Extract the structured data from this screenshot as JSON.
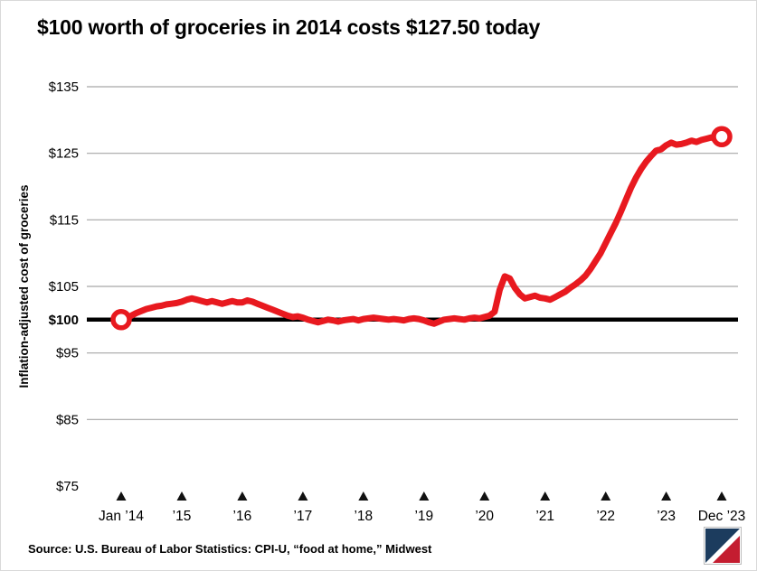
{
  "header": {
    "title": "$100 worth of groceries in 2014 costs $127.50 today"
  },
  "source": {
    "text": "Source: U.S. Bureau of Labor Statistics: CPI-U, “food at home,” Midwest"
  },
  "style": {
    "line_color": "#e8191f",
    "grid_color": "#a6a6a6",
    "baseline_color": "#000000",
    "tick_marker_color": "#111111",
    "logo_navy": "#1c3c5e",
    "logo_red": "#c41d30"
  },
  "chart_data": {
    "type": "line",
    "title": "$100 worth of groceries in 2014 costs $127.50 today",
    "xlabel": "",
    "ylabel": "Inflation-adjusted cost of groceries",
    "ylim": [
      75,
      135
    ],
    "grid": "horizontal-only",
    "legend": "none",
    "gridline_values": [
      135,
      125,
      115,
      105,
      95,
      85
    ],
    "baseline": {
      "value": 100,
      "label": "$100"
    },
    "y_ticks": [
      {
        "label": "$135",
        "value": 135
      },
      {
        "label": "$125",
        "value": 125
      },
      {
        "label": "$115",
        "value": 115
      },
      {
        "label": "$105",
        "value": 105
      },
      {
        "label": "$100",
        "value": 100
      },
      {
        "label": "$95",
        "value": 95
      },
      {
        "label": "$85",
        "value": 85
      },
      {
        "label": "$75",
        "value": 75
      }
    ],
    "x_ticks": [
      {
        "label": "Jan ’14",
        "month_index": 0
      },
      {
        "label": "’15",
        "month_index": 12
      },
      {
        "label": "’16",
        "month_index": 24
      },
      {
        "label": "’17",
        "month_index": 36
      },
      {
        "label": "’18",
        "month_index": 48
      },
      {
        "label": "’19",
        "month_index": 60
      },
      {
        "label": "’20",
        "month_index": 72
      },
      {
        "label": "’21",
        "month_index": 84
      },
      {
        "label": "’22",
        "month_index": 96
      },
      {
        "label": "’23",
        "month_index": 108
      },
      {
        "label": "Dec ’23",
        "month_index": 119
      }
    ],
    "series": [
      {
        "name": "Inflation-adjusted cost of groceries",
        "color": "#e8191f",
        "start_month": "Jan 2014",
        "end_month": "Dec 2023",
        "start_value": 100,
        "end_value": 127.5,
        "values": [
          100.0,
          100.3,
          100.6,
          101.0,
          101.3,
          101.6,
          101.8,
          102.0,
          102.1,
          102.3,
          102.4,
          102.5,
          102.7,
          103.0,
          103.2,
          103.0,
          102.8,
          102.6,
          102.8,
          102.6,
          102.4,
          102.6,
          102.8,
          102.6,
          102.6,
          102.9,
          102.7,
          102.4,
          102.1,
          101.8,
          101.5,
          101.2,
          100.9,
          100.6,
          100.4,
          100.5,
          100.3,
          100.0,
          99.8,
          99.6,
          99.8,
          100.0,
          99.9,
          99.7,
          99.9,
          100.0,
          100.1,
          99.9,
          100.1,
          100.2,
          100.3,
          100.2,
          100.1,
          100.0,
          100.1,
          100.0,
          99.9,
          100.1,
          100.2,
          100.1,
          99.9,
          99.6,
          99.4,
          99.7,
          100.0,
          100.1,
          100.2,
          100.1,
          100.0,
          100.2,
          100.3,
          100.2,
          100.4,
          100.6,
          101.2,
          104.5,
          106.5,
          106.2,
          104.8,
          103.8,
          103.2,
          103.4,
          103.6,
          103.3,
          103.2,
          103.0,
          103.4,
          103.8,
          104.2,
          104.8,
          105.3,
          105.9,
          106.6,
          107.6,
          108.8,
          110.0,
          111.5,
          113.0,
          114.5,
          116.2,
          118.0,
          119.8,
          121.3,
          122.6,
          123.7,
          124.6,
          125.4,
          125.6,
          126.2,
          126.6,
          126.3,
          126.4,
          126.6,
          126.9,
          126.7,
          127.0,
          127.2,
          127.4,
          127.0,
          127.5
        ]
      }
    ]
  }
}
